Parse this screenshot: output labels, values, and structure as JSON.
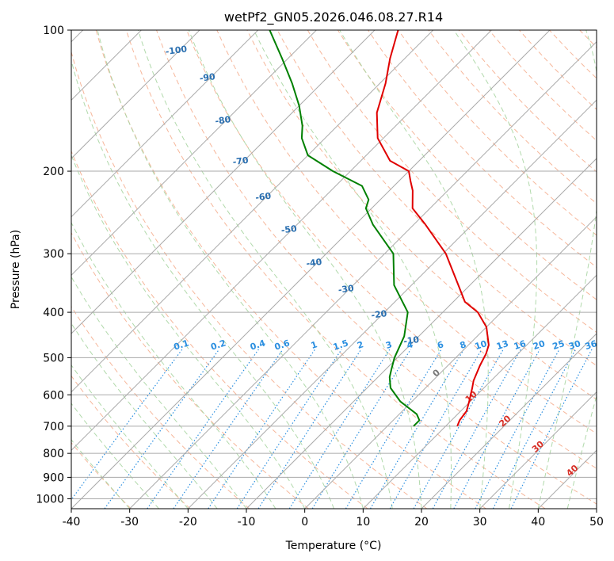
{
  "chart_data": {
    "type": "line",
    "diagram": "skew-T log-P",
    "title": "wetPf2_GN05.2026.046.08.27.R14",
    "xlabel": "Temperature (°C)",
    "ylabel": "Pressure (hPa)",
    "xlim": [
      -40,
      50
    ],
    "ylim": [
      1050,
      100
    ],
    "y_scale": "log",
    "x_ticks": [
      -40,
      -30,
      -20,
      -10,
      0,
      10,
      20,
      30,
      40,
      50
    ],
    "y_ticks": [
      100,
      200,
      300,
      400,
      500,
      600,
      700,
      800,
      900,
      1000
    ],
    "grid": true,
    "colors": {
      "temperature": "#e00000",
      "dewpoint": "#008000",
      "isotherm": "#aaaaaa",
      "dry_adiabat": "#f4a582",
      "moist_adiabat": "#a8d5a2",
      "mixing_ratio": "#2b8fe0",
      "isotherm_label": "#2a6fb0",
      "red_label": "#d73027"
    },
    "series": [
      {
        "name": "temperature",
        "points": [
          {
            "p": 700,
            "t": 12.0
          },
          {
            "p": 680,
            "t": 11.4
          },
          {
            "p": 650,
            "t": 11.0
          },
          {
            "p": 620,
            "t": 9.8
          },
          {
            "p": 580,
            "t": 8.0
          },
          {
            "p": 560,
            "t": 7.0
          },
          {
            "p": 520,
            "t": 5.5
          },
          {
            "p": 490,
            "t": 4.5
          },
          {
            "p": 470,
            "t": 3.5
          },
          {
            "p": 430,
            "t": 0.0
          },
          {
            "p": 400,
            "t": -4.0
          },
          {
            "p": 380,
            "t": -8.0
          },
          {
            "p": 350,
            "t": -12.0
          },
          {
            "p": 300,
            "t": -19.5
          },
          {
            "p": 260,
            "t": -28.0
          },
          {
            "p": 240,
            "t": -33.0
          },
          {
            "p": 220,
            "t": -36.0
          },
          {
            "p": 210,
            "t": -38.0
          },
          {
            "p": 200,
            "t": -40.0
          },
          {
            "p": 190,
            "t": -45.0
          },
          {
            "p": 170,
            "t": -51.0
          },
          {
            "p": 150,
            "t": -55.5
          },
          {
            "p": 130,
            "t": -59.0
          },
          {
            "p": 115,
            "t": -62.5
          },
          {
            "p": 100,
            "t": -66.0
          }
        ]
      },
      {
        "name": "dewpoint",
        "points": [
          {
            "p": 700,
            "t": 4.5
          },
          {
            "p": 680,
            "t": 4.5
          },
          {
            "p": 660,
            "t": 3.0
          },
          {
            "p": 620,
            "t": -2.0
          },
          {
            "p": 580,
            "t": -6.0
          },
          {
            "p": 550,
            "t": -8.0
          },
          {
            "p": 530,
            "t": -9.0
          },
          {
            "p": 500,
            "t": -10.5
          },
          {
            "p": 450,
            "t": -12.5
          },
          {
            "p": 400,
            "t": -16.0
          },
          {
            "p": 350,
            "t": -23.0
          },
          {
            "p": 300,
            "t": -28.5
          },
          {
            "p": 260,
            "t": -37.0
          },
          {
            "p": 240,
            "t": -41.0
          },
          {
            "p": 230,
            "t": -42.0
          },
          {
            "p": 215,
            "t": -45.5
          },
          {
            "p": 200,
            "t": -53.0
          },
          {
            "p": 185,
            "t": -60.0
          },
          {
            "p": 170,
            "t": -64.0
          },
          {
            "p": 160,
            "t": -66.0
          },
          {
            "p": 145,
            "t": -70.0
          },
          {
            "p": 130,
            "t": -75.0
          },
          {
            "p": 115,
            "t": -81.0
          },
          {
            "p": 100,
            "t": -88.0
          }
        ]
      }
    ],
    "isotherm_labels": [
      {
        "text": "-100",
        "t": -100,
        "p": 112
      },
      {
        "text": "-90",
        "t": -90,
        "p": 128
      },
      {
        "text": "-80",
        "t": -80,
        "p": 158
      },
      {
        "text": "-70",
        "t": -70,
        "p": 193
      },
      {
        "text": "-60",
        "t": -60,
        "p": 230
      },
      {
        "text": "-50",
        "t": -50,
        "p": 270
      },
      {
        "text": "-40",
        "t": -40,
        "p": 318
      },
      {
        "text": "-30",
        "t": -30,
        "p": 362
      },
      {
        "text": "-20",
        "t": -20,
        "p": 410
      },
      {
        "text": "-10",
        "t": -10,
        "p": 466
      }
    ],
    "mixing_ratio_labels": [
      "0.1",
      "0.2",
      "0.4",
      "0.6",
      "1",
      "1.5",
      "2",
      "3",
      "4",
      "6",
      "8",
      "10",
      "13",
      "16",
      "20",
      "25",
      "30",
      "36"
    ],
    "mixing_ratio_label_pressure": 480,
    "moist_adiabat_labels": [
      {
        "text": "0",
        "t": 0,
        "p": 545
      },
      {
        "text": "10",
        "t": 10,
        "p": 612
      },
      {
        "text": "20",
        "t": 20,
        "p": 690
      },
      {
        "text": "30",
        "t": 30,
        "p": 782
      },
      {
        "text": "40",
        "t": 40,
        "p": 880
      }
    ]
  }
}
